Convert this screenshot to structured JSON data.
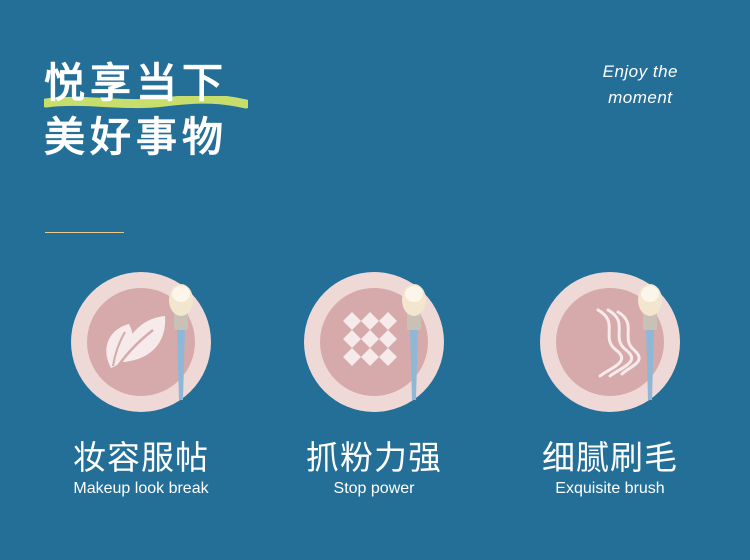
{
  "heading": {
    "line1": "悦享当下",
    "line2": "美好事物"
  },
  "tagline": {
    "line1": "Enjoy the",
    "line2": "moment"
  },
  "features": [
    {
      "title": "妆容服帖",
      "subtitle": "Makeup look break",
      "icon": "leaf-icon"
    },
    {
      "title": "抓粉力强",
      "subtitle": "Stop power",
      "icon": "diamond-pattern-icon"
    },
    {
      "title": "细腻刷毛",
      "subtitle": "Exquisite brush",
      "icon": "wave-lines-icon"
    }
  ],
  "colors": {
    "background": "#246f98",
    "circle_outer": "#efd9d7",
    "circle_inner": "#d6a9ab",
    "accent_underline": "#c7dd6c",
    "rule": "#e8c98b",
    "brush_handle": "#8fb8d6",
    "brush_ferrule": "#c9c1b6",
    "brush_bristle": "#f2e6cf"
  }
}
